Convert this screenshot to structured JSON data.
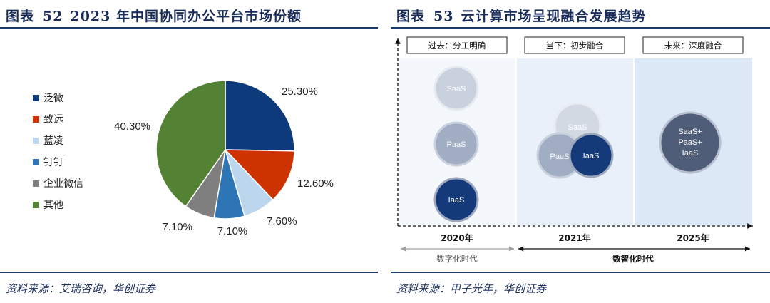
{
  "left": {
    "fig_label": "图表",
    "fig_num": "52",
    "title": "2023 年中国协同办公平台市场份额",
    "source": "资料来源：艾瑞咨询，华创证券"
  },
  "right": {
    "fig_label": "图表",
    "fig_num": "53",
    "title": "云计算市场呈现融合发展趋势",
    "source": "资料来源：甲子光年，华创证券"
  },
  "chart_data": [
    {
      "type": "pie",
      "title": "2023 年中国协同办公平台市场份额",
      "categories": [
        "泛微",
        "致远",
        "蓝凌",
        "钉钉",
        "企业微信",
        "其他"
      ],
      "values": [
        25.3,
        12.6,
        7.6,
        7.1,
        7.1,
        40.3
      ],
      "labels": [
        "25.30%",
        "12.60%",
        "7.60%",
        "7.10%",
        "7.10%",
        "40.30%"
      ],
      "colors": [
        "#0d3a7a",
        "#cc3300",
        "#bcd6ee",
        "#2e75b6",
        "#7f7f7f",
        "#548235"
      ],
      "legend_position": "left"
    }
  ],
  "cloud": {
    "stages": [
      {
        "label": "过去：分工明确",
        "year": "2020年"
      },
      {
        "label": "当下：初步融合",
        "year": "2021年"
      },
      {
        "label": "未来：深度融合",
        "year": "2025年"
      }
    ],
    "circles": {
      "s2020_saas": "SaaS",
      "s2020_paas": "PaaS",
      "s2020_iaas": "IaaS",
      "s2021_saas": "SaaS",
      "s2021_paas": "PaaS",
      "s2021_iaas": "IaaS",
      "s2025_line1": "SaaS+",
      "s2025_line2": "PaaS+",
      "s2025_line3": "IaaS"
    },
    "eras": {
      "digital": "数字化时代",
      "digital_intelligence": "数智化时代"
    }
  }
}
